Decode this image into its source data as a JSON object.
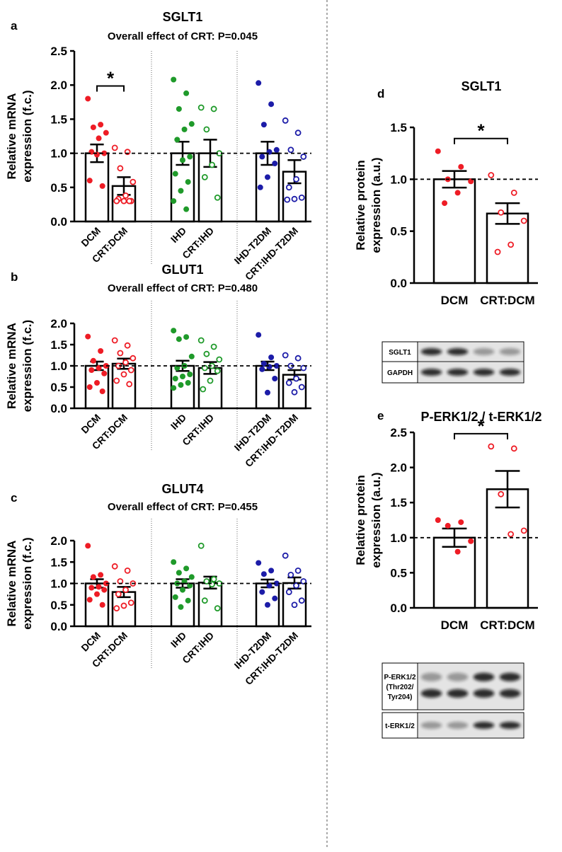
{
  "chart_data": [
    {
      "type": "bar",
      "panel_label": "a",
      "title": "SGLT1",
      "subtitle": "Overall effect of CRT: P=0.045",
      "ylabel": [
        "Relative mRNA",
        "expression (f.c.)"
      ],
      "categories": [
        "DCM",
        "CRT:DCM",
        "IHD",
        "CRT:IHD",
        "IHD-T2DM",
        "CRT:IHD-T2DM"
      ],
      "values": [
        1.0,
        0.52,
        1.0,
        1.0,
        1.0,
        0.73
      ],
      "errors": [
        0.13,
        0.13,
        0.17,
        0.2,
        0.17,
        0.17
      ],
      "points": [
        [
          1.8,
          1.42,
          1.38,
          1.3,
          1.22,
          1.02,
          1.0,
          0.98,
          0.6,
          0.52
        ],
        [
          1.08,
          1.02,
          0.78,
          0.58,
          0.38,
          0.33,
          0.3,
          0.3,
          0.3,
          0.3
        ],
        [
          2.08,
          1.88,
          1.65,
          1.43,
          1.35,
          1.2,
          0.95,
          0.9,
          0.7,
          0.58,
          0.45,
          0.3,
          0.18
        ],
        [
          1.67,
          1.65,
          1.35,
          1.0,
          0.83,
          0.65,
          0.35
        ],
        [
          2.03,
          1.72,
          1.42,
          1.05,
          1.02,
          0.95,
          0.85,
          0.65,
          0.5
        ],
        [
          1.48,
          1.3,
          1.05,
          0.95,
          0.62,
          0.5,
          0.35,
          0.33,
          0.32
        ]
      ],
      "colors": [
        "#ee1c25",
        "#ee1c25",
        "#1f9a2a",
        "#1f9a2a",
        "#1c1ca8",
        "#1c1ca8"
      ],
      "markers": [
        "filled",
        "open",
        "filled",
        "open",
        "filled",
        "open"
      ],
      "ylim": [
        0,
        2.5
      ],
      "yticks": [
        {
          "value": 0,
          "label": "0.0"
        },
        0.5,
        {
          "value": 1,
          "label": "1.0"
        },
        1.5,
        {
          "value": 2,
          "label": "2.0"
        },
        2.5
      ],
      "reference_line": 1,
      "significance": {
        "label": "*",
        "between": [
          0,
          1
        ]
      }
    },
    {
      "type": "bar",
      "panel_label": "b",
      "title": "GLUT1",
      "subtitle": "Overall effect of CRT: P=0.480",
      "ylabel": [
        "Relative mRNA",
        "expression (f.c.)"
      ],
      "categories": [
        "DCM",
        "CRT:DCM",
        "IHD",
        "CRT:IHD",
        "IHD-T2DM",
        "CRT:IHD-T2DM"
      ],
      "values": [
        1.0,
        1.05,
        1.0,
        0.95,
        1.0,
        0.79
      ],
      "errors": [
        0.1,
        0.12,
        0.12,
        0.14,
        0.1,
        0.11
      ],
      "points": [
        [
          1.69,
          1.35,
          1.12,
          1.0,
          0.95,
          0.9,
          0.82,
          0.6,
          0.5,
          0.4
        ],
        [
          1.6,
          1.48,
          1.3,
          1.18,
          1.08,
          1.0,
          0.9,
          0.8,
          0.65,
          0.57
        ],
        [
          1.83,
          1.68,
          1.63,
          1.22,
          1.0,
          0.95,
          0.8,
          0.75,
          0.7,
          0.6,
          0.55,
          0.48
        ],
        [
          1.6,
          1.45,
          1.28,
          1.15,
          1.0,
          0.95,
          0.88,
          0.65,
          0.45
        ],
        [
          1.73,
          1.2,
          1.05,
          1.0,
          0.98,
          0.92,
          0.7,
          0.37
        ],
        [
          1.25,
          1.18,
          1.0,
          0.95,
          0.7,
          0.6,
          0.5,
          0.38
        ]
      ],
      "colors": [
        "#ee1c25",
        "#ee1c25",
        "#1f9a2a",
        "#1f9a2a",
        "#1c1ca8",
        "#1c1ca8"
      ],
      "markers": [
        "filled",
        "open",
        "filled",
        "open",
        "filled",
        "open"
      ],
      "ylim": [
        0,
        2
      ],
      "yticks": [
        {
          "value": 0,
          "label": "0.0"
        },
        0.5,
        {
          "value": 1,
          "label": "1.0"
        },
        1.5,
        {
          "value": 2,
          "label": "2.0"
        }
      ],
      "reference_line": 1
    },
    {
      "type": "bar",
      "panel_label": "c",
      "title": "GLUT4",
      "subtitle": "Overall effect of CRT: P=0.455",
      "ylabel": [
        "Relative mRNA",
        "expression (f.c.)"
      ],
      "categories": [
        "DCM",
        "CRT:DCM",
        "IHD",
        "CRT:IHD",
        "IHD-T2DM",
        "CRT:IHD-T2DM"
      ],
      "values": [
        1.0,
        0.8,
        1.0,
        1.02,
        1.0,
        1.01
      ],
      "errors": [
        0.1,
        0.12,
        0.1,
        0.14,
        0.09,
        0.13
      ],
      "points": [
        [
          1.88,
          1.2,
          1.15,
          1.0,
          0.92,
          0.9,
          0.85,
          0.75,
          0.62,
          0.5
        ],
        [
          1.4,
          1.3,
          1.05,
          1.0,
          0.85,
          0.75,
          0.55,
          0.48,
          0.42
        ],
        [
          1.5,
          1.35,
          1.25,
          1.15,
          1.05,
          1.0,
          0.95,
          0.85,
          0.68,
          0.6,
          0.45
        ],
        [
          1.88,
          1.1,
          1.05,
          1.0,
          0.98,
          0.6,
          0.42
        ],
        [
          1.48,
          1.3,
          1.22,
          1.0,
          0.95,
          0.8,
          0.65,
          0.5
        ],
        [
          1.65,
          1.3,
          1.2,
          1.05,
          0.95,
          0.8,
          0.6,
          0.5
        ]
      ],
      "colors": [
        "#ee1c25",
        "#ee1c25",
        "#1f9a2a",
        "#1f9a2a",
        "#1c1ca8",
        "#1c1ca8"
      ],
      "markers": [
        "filled",
        "open",
        "filled",
        "open",
        "filled",
        "open"
      ],
      "ylim": [
        0,
        2
      ],
      "yticks": [
        {
          "value": 0,
          "label": "0.0"
        },
        0.5,
        {
          "value": 1,
          "label": "1.0"
        },
        1.5,
        {
          "value": 2,
          "label": "2.0"
        }
      ],
      "reference_line": 1
    },
    {
      "type": "bar",
      "panel_label": "d",
      "title": "SGLT1",
      "ylabel": [
        "Relative protein",
        "expression (a.u.)"
      ],
      "categories": [
        "DCM",
        "CRT:DCM"
      ],
      "values": [
        1.0,
        0.67
      ],
      "errors": [
        0.08,
        0.1
      ],
      "points": [
        [
          1.27,
          1.12,
          1.0,
          0.98,
          0.87,
          0.77
        ],
        [
          1.04,
          0.87,
          0.68,
          0.6,
          0.37,
          0.3
        ]
      ],
      "colors": [
        "#ee1c25",
        "#ee1c25"
      ],
      "markers": [
        "filled",
        "open"
      ],
      "ylim": [
        0,
        1.5
      ],
      "yticks": [
        {
          "value": 0,
          "label": "0.0"
        },
        0.5,
        {
          "value": 1,
          "label": "1.0"
        },
        1.5
      ],
      "reference_line": 1,
      "significance": {
        "label": "*",
        "between": [
          0,
          1
        ]
      },
      "blot_labels": [
        [
          "SGLT1"
        ],
        [
          "GAPDH"
        ]
      ]
    },
    {
      "type": "bar",
      "panel_label": "e",
      "title": "P-ERK1/2 / t-ERK1/2",
      "ylabel": [
        "Relative protein",
        "expression (a.u.)"
      ],
      "categories": [
        "DCM",
        "CRT:DCM"
      ],
      "values": [
        1.0,
        1.69
      ],
      "errors": [
        0.13,
        0.26
      ],
      "points": [
        [
          1.25,
          1.22,
          1.17,
          0.95,
          0.8
        ],
        [
          2.3,
          2.27,
          1.62,
          1.1,
          1.05
        ]
      ],
      "colors": [
        "#ee1c25",
        "#ee1c25"
      ],
      "markers": [
        "filled",
        "open"
      ],
      "ylim": [
        0,
        2.5
      ],
      "yticks": [
        {
          "value": 0,
          "label": "0.0"
        },
        0.5,
        {
          "value": 1,
          "label": "1.0"
        },
        1.5,
        {
          "value": 2,
          "label": "2.0"
        },
        2.5
      ],
      "reference_line": 1,
      "significance": {
        "label": "*",
        "between": [
          0,
          1
        ]
      },
      "blot_labels": [
        [
          "P-ERK1/2",
          "(Thr202/",
          "Tyr204)"
        ],
        [
          "t-ERK1/2"
        ]
      ]
    }
  ]
}
